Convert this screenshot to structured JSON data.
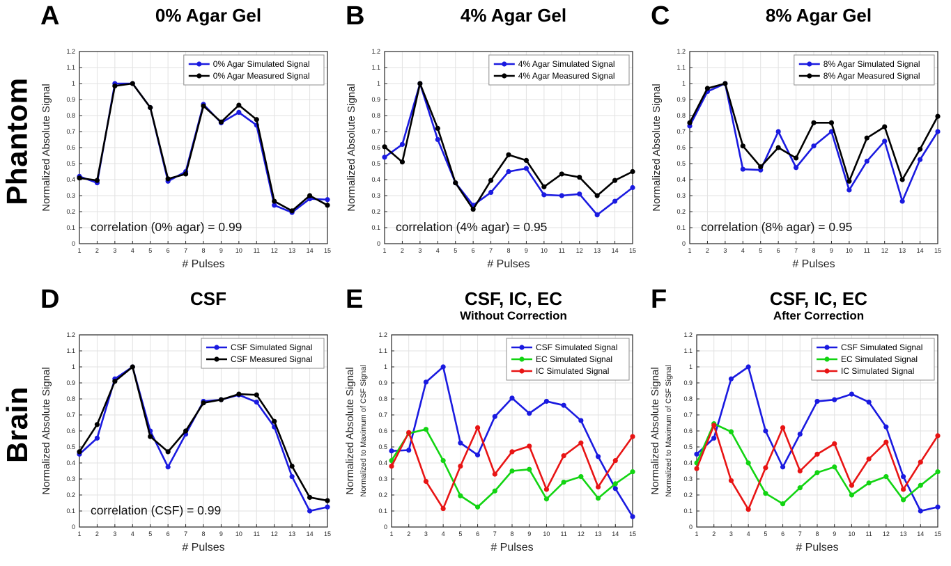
{
  "row_labels": [
    "Phantom",
    "Brain"
  ],
  "chart_data": [
    {
      "letter": "A",
      "row": "Phantom",
      "type": "line",
      "title": "0% Agar Gel",
      "subtitle": "",
      "xlabel": "# Pulses",
      "ylabel": "Normalized Absolute Signal",
      "ylabel2": "",
      "x": [
        1,
        2,
        3,
        4,
        5,
        6,
        7,
        8,
        9,
        10,
        11,
        12,
        13,
        14,
        15
      ],
      "xlim": [
        1,
        15
      ],
      "ylim": [
        0,
        1.2
      ],
      "ytick_step": 0.1,
      "grid": true,
      "legend_position": "top-right",
      "annotation": "correlation (0% agar) = 0.99",
      "series": [
        {
          "name": "0% Agar Simulated Signal",
          "color": "#1a1ae0",
          "values": [
            0.42,
            0.38,
            1.0,
            1.0,
            0.85,
            0.39,
            0.45,
            0.87,
            0.755,
            0.82,
            0.74,
            0.24,
            0.195,
            0.28,
            0.275
          ]
        },
        {
          "name": "0% Agar Measured Signal",
          "color": "#000000",
          "values": [
            0.41,
            0.395,
            0.985,
            1.0,
            0.85,
            0.405,
            0.435,
            0.86,
            0.76,
            0.865,
            0.775,
            0.265,
            0.205,
            0.3,
            0.24
          ]
        }
      ]
    },
    {
      "letter": "B",
      "row": "Phantom",
      "type": "line",
      "title": "4% Agar Gel",
      "subtitle": "",
      "xlabel": "# Pulses",
      "ylabel": "Normalized Absolute Signal",
      "ylabel2": "",
      "x": [
        1,
        2,
        3,
        4,
        5,
        6,
        7,
        8,
        9,
        10,
        11,
        12,
        13,
        14,
        15
      ],
      "xlim": [
        1,
        15
      ],
      "ylim": [
        0,
        1.2
      ],
      "ytick_step": 0.1,
      "grid": true,
      "legend_position": "top-right",
      "annotation": "correlation (4% agar) = 0.95",
      "series": [
        {
          "name": "4% Agar Simulated Signal",
          "color": "#1a1ae0",
          "values": [
            0.54,
            0.62,
            1.0,
            0.65,
            0.38,
            0.24,
            0.32,
            0.45,
            0.47,
            0.305,
            0.3,
            0.31,
            0.18,
            0.265,
            0.35
          ]
        },
        {
          "name": "4% Agar Measured Signal",
          "color": "#000000",
          "values": [
            0.605,
            0.51,
            1.0,
            0.72,
            0.38,
            0.215,
            0.395,
            0.555,
            0.52,
            0.355,
            0.435,
            0.415,
            0.3,
            0.395,
            0.45
          ]
        }
      ]
    },
    {
      "letter": "C",
      "row": "Phantom",
      "type": "line",
      "title": "8% Agar Gel",
      "subtitle": "",
      "xlabel": "# Pulses",
      "ylabel": "Normalized Absolute Signal",
      "ylabel2": "",
      "x": [
        1,
        2,
        3,
        4,
        5,
        6,
        7,
        8,
        9,
        10,
        11,
        12,
        13,
        14,
        15
      ],
      "xlim": [
        1,
        15
      ],
      "ylim": [
        0,
        1.2
      ],
      "ytick_step": 0.1,
      "grid": true,
      "legend_position": "top-right",
      "annotation": "correlation (8% agar) = 0.95",
      "series": [
        {
          "name": "8% Agar Simulated Signal",
          "color": "#1a1ae0",
          "values": [
            0.735,
            0.95,
            1.0,
            0.465,
            0.46,
            0.7,
            0.475,
            0.61,
            0.7,
            0.335,
            0.515,
            0.64,
            0.265,
            0.525,
            0.7
          ]
        },
        {
          "name": "8% Agar Measured Signal",
          "color": "#000000",
          "values": [
            0.755,
            0.97,
            1.0,
            0.61,
            0.48,
            0.6,
            0.535,
            0.755,
            0.755,
            0.39,
            0.66,
            0.73,
            0.4,
            0.59,
            0.795
          ]
        }
      ]
    },
    {
      "letter": "D",
      "row": "Brain",
      "type": "line",
      "title": "CSF",
      "subtitle": "",
      "xlabel": "# Pulses",
      "ylabel": "Normalized Absolute Signal",
      "ylabel2": "",
      "x": [
        1,
        2,
        3,
        4,
        5,
        6,
        7,
        8,
        9,
        10,
        11,
        12,
        13,
        14,
        15
      ],
      "xlim": [
        1,
        15
      ],
      "ylim": [
        0,
        1.2
      ],
      "ytick_step": 0.1,
      "grid": true,
      "legend_position": "top-right",
      "annotation": "correlation (CSF) = 0.99",
      "series": [
        {
          "name": "CSF Simulated Signal",
          "color": "#1a1ae0",
          "values": [
            0.455,
            0.555,
            0.925,
            1.0,
            0.6,
            0.375,
            0.58,
            0.785,
            0.795,
            0.825,
            0.78,
            0.625,
            0.315,
            0.1,
            0.125
          ]
        },
        {
          "name": "CSF Measured Signal",
          "color": "#000000",
          "values": [
            0.47,
            0.64,
            0.91,
            1.0,
            0.565,
            0.47,
            0.6,
            0.775,
            0.795,
            0.83,
            0.825,
            0.66,
            0.38,
            0.185,
            0.165
          ]
        }
      ]
    },
    {
      "letter": "E",
      "row": "Brain",
      "type": "line",
      "title": "CSF, IC, EC",
      "subtitle": "Without Correction",
      "xlabel": "# Pulses",
      "ylabel": "Normalized Absolute Signal",
      "ylabel2": "Normalized to Maximum of CSF Signal",
      "x": [
        1,
        2,
        3,
        4,
        5,
        6,
        7,
        8,
        9,
        10,
        11,
        12,
        13,
        14,
        15
      ],
      "xlim": [
        1,
        15
      ],
      "ylim": [
        0,
        1.2
      ],
      "ytick_step": 0.1,
      "grid": true,
      "legend_position": "top-right",
      "annotation": "",
      "series": [
        {
          "name": "CSF Simulated Signal",
          "color": "#1a1ae0",
          "values": [
            0.475,
            0.48,
            0.905,
            1.0,
            0.525,
            0.45,
            0.69,
            0.805,
            0.71,
            0.785,
            0.76,
            0.665,
            0.44,
            0.24,
            0.065
          ]
        },
        {
          "name": "EC Simulated Signal",
          "color": "#12d412",
          "values": [
            0.415,
            0.585,
            0.61,
            0.415,
            0.195,
            0.125,
            0.225,
            0.35,
            0.36,
            0.175,
            0.28,
            0.315,
            0.18,
            0.27,
            0.345
          ]
        },
        {
          "name": "IC Simulated Signal",
          "color": "#e81414",
          "values": [
            0.38,
            0.59,
            0.285,
            0.115,
            0.38,
            0.62,
            0.33,
            0.47,
            0.505,
            0.235,
            0.445,
            0.525,
            0.25,
            0.415,
            0.565
          ]
        }
      ]
    },
    {
      "letter": "F",
      "row": "Brain",
      "type": "line",
      "title": "CSF, IC, EC",
      "subtitle": "After Correction",
      "xlabel": "# Pulses",
      "ylabel": "Normalized Absolute Signal",
      "ylabel2": "Normalized to Maximum of CSF Signal",
      "x": [
        1,
        2,
        3,
        4,
        5,
        6,
        7,
        8,
        9,
        10,
        11,
        12,
        13,
        14,
        15
      ],
      "xlim": [
        1,
        15
      ],
      "ylim": [
        0,
        1.2
      ],
      "ytick_step": 0.1,
      "grid": true,
      "legend_position": "top-right",
      "annotation": "",
      "series": [
        {
          "name": "CSF Simulated Signal",
          "color": "#1a1ae0",
          "values": [
            0.455,
            0.555,
            0.925,
            1.0,
            0.6,
            0.375,
            0.58,
            0.785,
            0.795,
            0.83,
            0.78,
            0.625,
            0.315,
            0.1,
            0.125
          ]
        },
        {
          "name": "EC Simulated Signal",
          "color": "#12d412",
          "values": [
            0.4,
            0.645,
            0.595,
            0.4,
            0.21,
            0.145,
            0.245,
            0.34,
            0.375,
            0.2,
            0.275,
            0.315,
            0.17,
            0.26,
            0.345
          ]
        },
        {
          "name": "IC Simulated Signal",
          "color": "#e81414",
          "values": [
            0.365,
            0.635,
            0.29,
            0.11,
            0.37,
            0.62,
            0.35,
            0.455,
            0.52,
            0.26,
            0.425,
            0.53,
            0.235,
            0.405,
            0.57
          ]
        }
      ]
    }
  ]
}
